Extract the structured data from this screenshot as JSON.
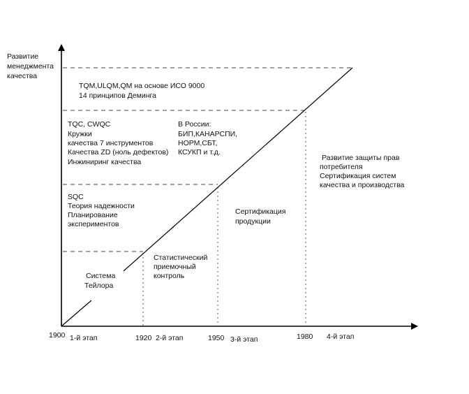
{
  "y_axis_label": [
    "Развитие",
    "менеджмента",
    "качества"
  ],
  "years": [
    "1900",
    "1920",
    "1950",
    "1980"
  ],
  "stages": [
    "1-й этап",
    "2-й этап",
    "3-й этап",
    "4-й этап"
  ],
  "level4": [
    "TQM,ULQM,QM на основе ИСО 9000",
    "14 принципов Деминга"
  ],
  "level3_left": [
    "TQC, CWQC",
    "Кружки",
    "качества 7 инструментов",
    "Качества ZD (ноль дефектов)",
    "Инжиниринг качества"
  ],
  "level3_russia": [
    "В России:",
    "БИП,КАНАРСПИ,",
    "НОРМ,СБТ,",
    "КСУКП и т.д."
  ],
  "level2_left": [
    "SQC",
    "Теория надежности",
    "Планирование",
    "экспериментов"
  ],
  "stage1": [
    "Система",
    "Тейлора"
  ],
  "stage2": [
    "Статистический",
    "приемочный",
    "контроль"
  ],
  "stage3": [
    "Сертификация",
    "продукции"
  ],
  "stage4": [
    "Развитие защиты прав",
    "потребителя",
    "Сертификация систем",
    "качества и производства"
  ]
}
